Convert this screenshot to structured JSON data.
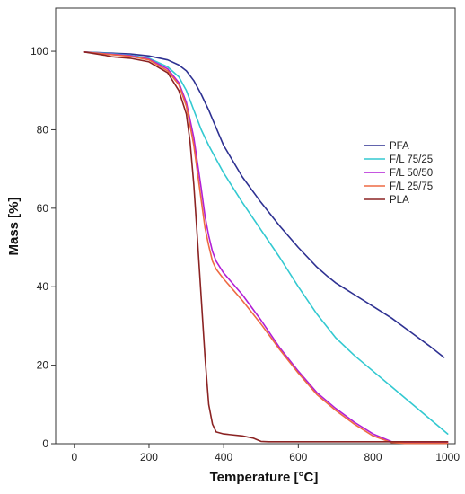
{
  "chart_data": {
    "type": "line",
    "xlabel": "Temperature [°C]",
    "ylabel": "Mass [%]",
    "xlim": [
      -50,
      1020
    ],
    "ylim": [
      0,
      111
    ],
    "x_ticks": [
      0,
      200,
      400,
      600,
      800,
      1000
    ],
    "y_ticks": [
      0,
      20,
      40,
      60,
      80,
      100
    ],
    "grid": false,
    "legend_position": "right",
    "series": [
      {
        "name": "PFA",
        "color": "#2e3192",
        "x": [
          28,
          80,
          150,
          200,
          250,
          280,
          300,
          320,
          340,
          360,
          380,
          400,
          450,
          500,
          550,
          600,
          650,
          680,
          700,
          750,
          800,
          850,
          900,
          950,
          990
        ],
        "y": [
          99.8,
          99.6,
          99.3,
          98.8,
          97.8,
          96.5,
          95.0,
          92.5,
          89.0,
          85.0,
          80.5,
          76.0,
          68.0,
          61.5,
          55.5,
          50.0,
          45.0,
          42.5,
          41.0,
          38.0,
          35.0,
          32.0,
          28.5,
          25.0,
          22.0
        ]
      },
      {
        "name": "F/L 75/25",
        "color": "#33c9d1",
        "x": [
          28,
          80,
          150,
          200,
          250,
          280,
          300,
          320,
          340,
          360,
          380,
          400,
          450,
          500,
          550,
          600,
          650,
          700,
          750,
          800,
          850,
          900,
          950,
          1000
        ],
        "y": [
          99.8,
          99.5,
          99.0,
          98.2,
          96.0,
          93.5,
          90.0,
          85.0,
          80.0,
          76.0,
          72.5,
          69.0,
          61.5,
          54.5,
          47.5,
          40.0,
          33.0,
          27.0,
          22.5,
          18.5,
          14.5,
          10.5,
          6.5,
          2.5
        ]
      },
      {
        "name": "F/L 50/50",
        "color": "#b21fd6",
        "x": [
          28,
          80,
          150,
          200,
          250,
          280,
          300,
          320,
          340,
          350,
          360,
          370,
          380,
          400,
          450,
          500,
          550,
          600,
          650,
          700,
          750,
          800,
          850,
          885,
          1000
        ],
        "y": [
          99.8,
          99.4,
          98.9,
          98.0,
          95.5,
          92.0,
          87.0,
          78.0,
          65.0,
          58.0,
          53.0,
          49.0,
          46.5,
          43.5,
          38.0,
          31.5,
          24.5,
          18.5,
          13.0,
          9.0,
          5.5,
          2.5,
          0.5,
          0.2,
          0.2
        ]
      },
      {
        "name": "F/L 25/75",
        "color": "#ee6a43",
        "x": [
          28,
          80,
          150,
          200,
          250,
          280,
          300,
          320,
          340,
          350,
          360,
          370,
          380,
          400,
          450,
          500,
          550,
          600,
          650,
          700,
          750,
          800,
          850,
          885,
          1000
        ],
        "y": [
          99.8,
          99.3,
          98.7,
          97.8,
          95.0,
          91.5,
          86.0,
          76.0,
          62.0,
          55.0,
          50.5,
          46.5,
          44.5,
          42.0,
          36.5,
          30.5,
          24.0,
          18.0,
          12.5,
          8.5,
          5.0,
          2.0,
          0.3,
          0.1,
          0.1
        ]
      },
      {
        "name": "PLA",
        "color": "#8b2323",
        "x": [
          28,
          80,
          100,
          150,
          200,
          250,
          280,
          300,
          310,
          320,
          330,
          340,
          350,
          360,
          370,
          380,
          400,
          450,
          480,
          500,
          520,
          600,
          700,
          800,
          900,
          1000
        ],
        "y": [
          99.8,
          99.0,
          98.6,
          98.2,
          97.3,
          94.5,
          90.0,
          84.0,
          77.0,
          66.0,
          52.0,
          37.0,
          22.0,
          10.0,
          5.0,
          3.0,
          2.5,
          2.0,
          1.4,
          0.6,
          0.5,
          0.5,
          0.5,
          0.5,
          0.5,
          0.5
        ]
      }
    ]
  }
}
